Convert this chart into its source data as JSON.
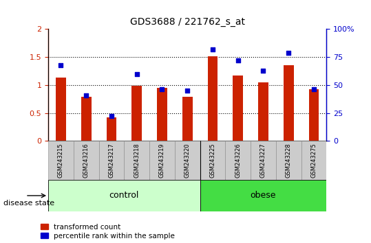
{
  "title": "GDS3688 / 221762_s_at",
  "categories": [
    "GSM243215",
    "GSM243216",
    "GSM243217",
    "GSM243218",
    "GSM243219",
    "GSM243220",
    "GSM243225",
    "GSM243226",
    "GSM243227",
    "GSM243228",
    "GSM243275"
  ],
  "red_values": [
    1.13,
    0.79,
    0.42,
    0.99,
    0.95,
    0.79,
    1.52,
    1.17,
    1.05,
    1.36,
    0.93
  ],
  "blue_pct": [
    68,
    41,
    22,
    60,
    46,
    45,
    82,
    72,
    63,
    79,
    46
  ],
  "red_ylim": [
    0,
    2.0
  ],
  "blue_ylim": [
    0,
    100
  ],
  "red_yticks": [
    0,
    0.5,
    1.0,
    1.5,
    2.0
  ],
  "red_yticklabels": [
    "0",
    "0.5",
    "1",
    "1.5",
    "2"
  ],
  "blue_yticks": [
    0,
    25,
    50,
    75,
    100
  ],
  "blue_yticklabels": [
    "0",
    "25",
    "50",
    "75",
    "100%"
  ],
  "red_color": "#cc2200",
  "blue_color": "#0000cc",
  "groups": [
    {
      "label": "control",
      "start": 0,
      "end": 5,
      "color": "#ccffcc"
    },
    {
      "label": "obese",
      "start": 6,
      "end": 10,
      "color": "#44dd44"
    }
  ],
  "disease_state_label": "disease state",
  "legend_red": "transformed count",
  "legend_blue": "percentile rank within the sample",
  "tick_area_color": "#cccccc",
  "title_fontsize": 10,
  "bg_color": "#ffffff"
}
